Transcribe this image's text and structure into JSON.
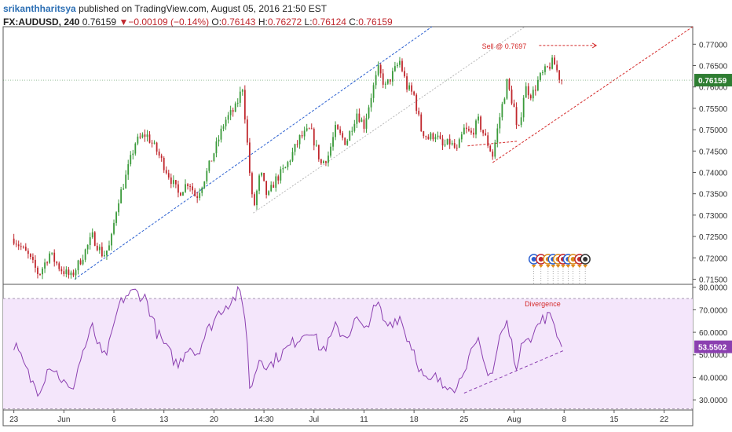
{
  "header": {
    "author": "srikanthharitsya",
    "published_text": "published on TradingView.com, August 05, 2016 21:50 EST",
    "symbol": "FX:AUDUSD, 240",
    "last": "0.76159",
    "change": "▼−0.00109 (−0.14%)",
    "o_label": "O:",
    "o_value": "0.76143",
    "h_label": "H:",
    "h_value": "0.76272",
    "l_label": "L:",
    "l_value": "0.76124",
    "c_label": "C:",
    "c_value": "0.76159"
  },
  "colors": {
    "up": "#3a9a3a",
    "down": "#c0272d",
    "rsi_line": "#8b3fb0",
    "rsi_band": "#f4e6fb",
    "channel_upper": "#2a5fd0",
    "channel_mid": "#b8b8b8",
    "trend_sell": "#d42a2a",
    "price_badge": "#2e7d32",
    "rsi_badge": "#8b3fb0"
  },
  "annotations": {
    "sell_label": "Sell @ 0.7697",
    "divergence_label": "Divergence"
  },
  "chart_data": [
    {
      "type": "candlestick",
      "symbol": "FX:AUDUSD",
      "interval": "240",
      "y_ticks": [
        "0.77000",
        "0.76500",
        "0.76000",
        "0.75500",
        "0.75000",
        "0.74500",
        "0.74000",
        "0.73500",
        "0.73000",
        "0.72500",
        "0.72000",
        "0.71500"
      ],
      "y_tick_values": [
        0.77,
        0.765,
        0.76,
        0.755,
        0.75,
        0.745,
        0.74,
        0.735,
        0.73,
        0.725,
        0.72,
        0.715
      ],
      "ylim": [
        0.7138,
        0.7741
      ],
      "last_price_label": "0.76159",
      "last_price": 0.76159,
      "x_ticks": [
        "23",
        "Jun",
        "6",
        "13",
        "20",
        "14:30",
        "Jul",
        "11",
        "18",
        "25",
        "Aug",
        "8",
        "15",
        "22"
      ],
      "x_tick_values": [
        0,
        7,
        14,
        21,
        28,
        35,
        42,
        49,
        56,
        63,
        70,
        77,
        84,
        91
      ],
      "x_range_days": [
        -1.5,
        95.0
      ],
      "x_unit": "days since May 23",
      "anchors": [
        [
          0,
          0.7245
        ],
        [
          2,
          0.7205
        ],
        [
          3.5,
          0.716
        ],
        [
          5,
          0.721
        ],
        [
          6.5,
          0.7175
        ],
        [
          8,
          0.7155
        ],
        [
          9.5,
          0.72
        ],
        [
          11,
          0.725
        ],
        [
          12.5,
          0.7205
        ],
        [
          13.5,
          0.723
        ],
        [
          14.5,
          0.733
        ],
        [
          15.5,
          0.738
        ],
        [
          17,
          0.747
        ],
        [
          18.5,
          0.749
        ],
        [
          20,
          0.745
        ],
        [
          21.5,
          0.74
        ],
        [
          23,
          0.735
        ],
        [
          24.5,
          0.738
        ],
        [
          25.5,
          0.734
        ],
        [
          27,
          0.74
        ],
        [
          28.5,
          0.747
        ],
        [
          29.5,
          0.752
        ],
        [
          31,
          0.755
        ],
        [
          32,
          0.76
        ],
        [
          33,
          0.74
        ],
        [
          33.5,
          0.731
        ],
        [
          34.5,
          0.74
        ],
        [
          35.5,
          0.734
        ],
        [
          36.5,
          0.738
        ],
        [
          38,
          0.741
        ],
        [
          40,
          0.748
        ],
        [
          41.5,
          0.75
        ],
        [
          43,
          0.742
        ],
        [
          44,
          0.744
        ],
        [
          45,
          0.75
        ],
        [
          46.5,
          0.747
        ],
        [
          48,
          0.754
        ],
        [
          49,
          0.751
        ],
        [
          50,
          0.758
        ],
        [
          51,
          0.764
        ],
        [
          52,
          0.76
        ],
        [
          53,
          0.763
        ],
        [
          54,
          0.766
        ],
        [
          55,
          0.76
        ],
        [
          56,
          0.758
        ],
        [
          57,
          0.75
        ],
        [
          58,
          0.748
        ],
        [
          59,
          0.749
        ],
        [
          60,
          0.746
        ],
        [
          61,
          0.747
        ],
        [
          62,
          0.745
        ],
        [
          63,
          0.75
        ],
        [
          64,
          0.749
        ],
        [
          65,
          0.752
        ],
        [
          66,
          0.748
        ],
        [
          67,
          0.744
        ],
        [
          68,
          0.753
        ],
        [
          69,
          0.761
        ],
        [
          70,
          0.755
        ],
        [
          70.5,
          0.748
        ],
        [
          71.5,
          0.76
        ],
        [
          72.5,
          0.758
        ],
        [
          73.5,
          0.762
        ],
        [
          74.5,
          0.764
        ],
        [
          75.5,
          0.766
        ],
        [
          76.5,
          0.7616
        ]
      ]
    },
    {
      "type": "line",
      "name": "RSI",
      "y_ticks": [
        "80.0000",
        "70.0000",
        "60.0000",
        "50.0000",
        "40.0000",
        "30.0000"
      ],
      "y_tick_values": [
        80,
        70,
        60,
        50,
        40,
        30
      ],
      "ylim": [
        25.5,
        81.3
      ],
      "band": [
        26,
        75
      ],
      "last_value_label": "53.5502",
      "last_value": 53.5502,
      "anchors": [
        [
          0,
          55
        ],
        [
          1.5,
          45
        ],
        [
          2.5,
          38
        ],
        [
          3.5,
          34
        ],
        [
          5,
          46
        ],
        [
          6.5,
          40
        ],
        [
          8,
          33
        ],
        [
          9.5,
          50
        ],
        [
          11,
          62
        ],
        [
          12.5,
          48
        ],
        [
          13.5,
          55
        ],
        [
          14.5,
          70
        ],
        [
          15.5,
          76
        ],
        [
          17,
          78
        ],
        [
          18.5,
          75
        ],
        [
          20,
          60
        ],
        [
          21.5,
          52
        ],
        [
          23,
          45
        ],
        [
          24.5,
          55
        ],
        [
          25.5,
          50
        ],
        [
          27,
          60
        ],
        [
          28.5,
          68
        ],
        [
          29.5,
          72
        ],
        [
          30.5,
          74
        ],
        [
          31.5,
          78
        ],
        [
          32.5,
          66
        ],
        [
          33,
          34
        ],
        [
          34.5,
          50
        ],
        [
          35.5,
          44
        ],
        [
          36.5,
          48
        ],
        [
          38,
          52
        ],
        [
          40,
          58
        ],
        [
          41.5,
          62
        ],
        [
          43,
          52
        ],
        [
          44,
          55
        ],
        [
          45,
          62
        ],
        [
          46.5,
          58
        ],
        [
          48,
          66
        ],
        [
          49,
          60
        ],
        [
          50,
          68
        ],
        [
          51,
          72
        ],
        [
          52,
          63
        ],
        [
          53,
          65
        ],
        [
          54,
          67
        ],
        [
          55,
          58
        ],
        [
          56,
          52
        ],
        [
          57,
          42
        ],
        [
          58,
          37
        ],
        [
          59,
          40
        ],
        [
          60,
          36
        ],
        [
          61,
          38
        ],
        [
          62,
          35
        ],
        [
          63,
          45
        ],
        [
          64,
          50
        ],
        [
          65,
          55
        ],
        [
          66,
          44
        ],
        [
          67,
          42
        ],
        [
          68,
          58
        ],
        [
          69,
          64
        ],
        [
          70,
          50
        ],
        [
          70.5,
          44
        ],
        [
          71.5,
          60
        ],
        [
          72.5,
          58
        ],
        [
          73.5,
          64
        ],
        [
          74.5,
          67
        ],
        [
          75.5,
          66
        ],
        [
          76.5,
          53.55
        ]
      ]
    }
  ]
}
